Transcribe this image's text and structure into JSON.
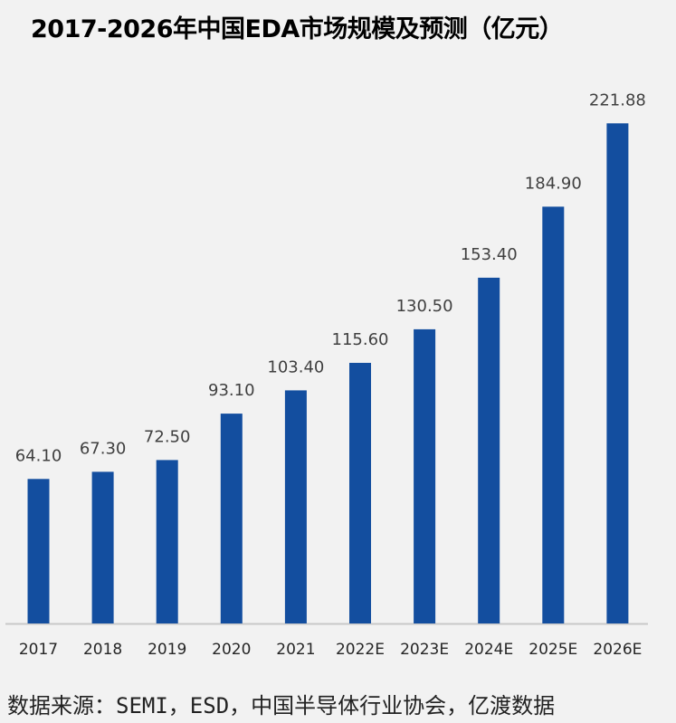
{
  "title": "2017-2026年中国EDA市场规模及预测（亿元）",
  "source": "数据来源：SEMI，ESD，中国半导体行业协会，亿渡数据",
  "colors": {
    "bar": "#134E9F",
    "axis": "#c8c8c8",
    "label": "#404040",
    "background": "#f2f2f2"
  },
  "chart_data": {
    "type": "bar",
    "title": "2017-2026年中国EDA市场规模及预测（亿元）",
    "categories": [
      "2017",
      "2018",
      "2019",
      "2020",
      "2021",
      "2022E",
      "2023E",
      "2024E",
      "2025E",
      "2026E"
    ],
    "values": [
      64.1,
      67.3,
      72.5,
      93.1,
      103.4,
      115.6,
      130.5,
      153.4,
      184.9,
      221.88
    ],
    "value_labels": [
      "64.10",
      "67.30",
      "72.50",
      "93.10",
      "103.40",
      "115.60",
      "130.50",
      "153.40",
      "184.90",
      "221.88"
    ],
    "ylim": [
      0,
      222
    ],
    "grid": false,
    "legend": "none"
  }
}
